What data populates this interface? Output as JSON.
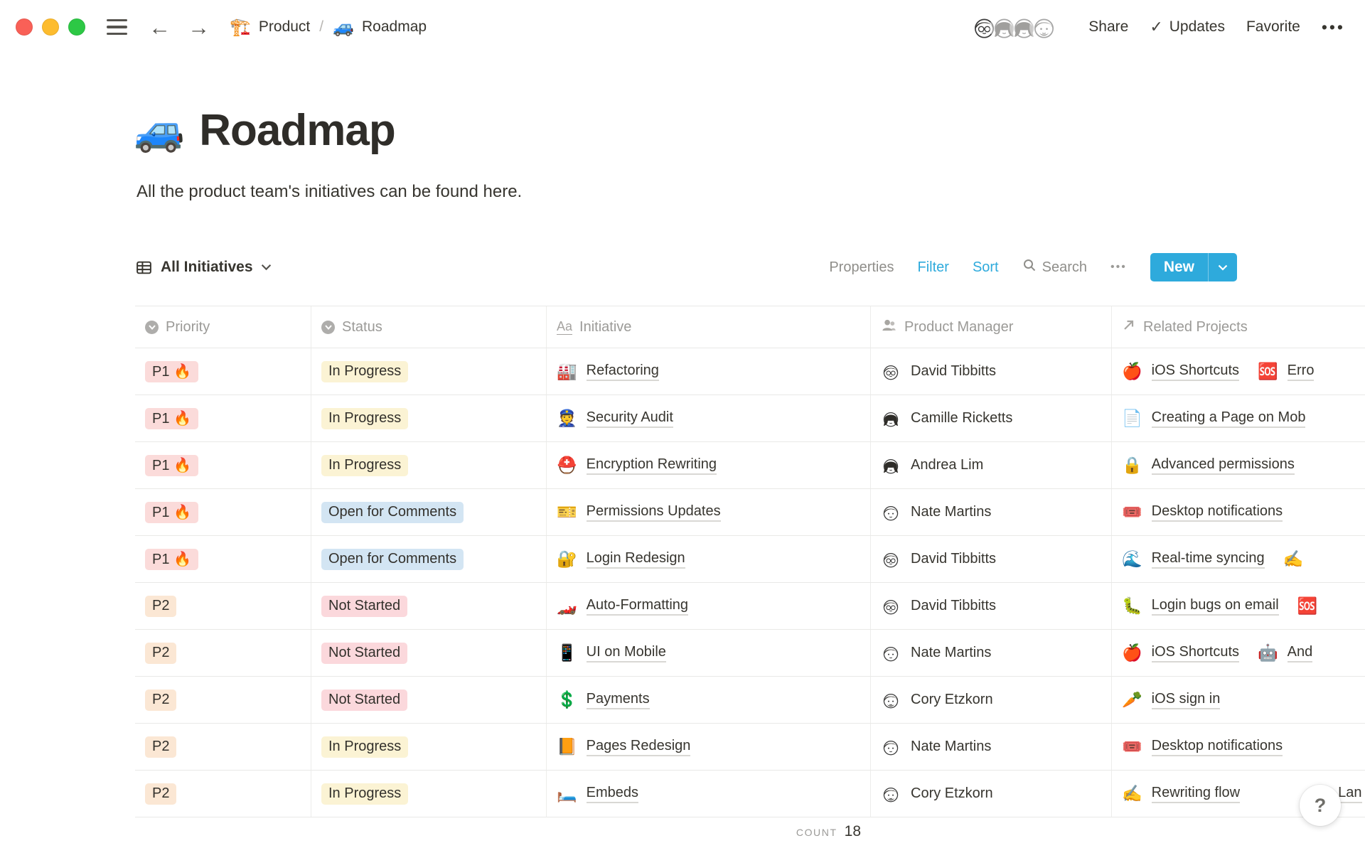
{
  "topbar": {
    "breadcrumb": [
      {
        "emoji": "🏗️",
        "label": "Product"
      },
      {
        "emoji": "🚙",
        "label": "Roadmap"
      }
    ],
    "breadcrumb_separator": "/",
    "avatars": [
      {
        "name": "David Tibbitts",
        "variant": "short-glasses"
      },
      {
        "name": "Camille Ricketts",
        "variant": "long"
      },
      {
        "name": "Andrea Lim",
        "variant": "long"
      },
      {
        "name": "Cory Etzkorn",
        "variant": "beard"
      }
    ],
    "share_label": "Share",
    "updates_check": "✓",
    "updates_label": "Updates",
    "favorite_label": "Favorite",
    "more_label": "•••"
  },
  "page": {
    "emoji": "🚙",
    "title": "Roadmap",
    "description": "All the product team's initiatives can be found here."
  },
  "toolbar": {
    "view_label": "All Initiatives",
    "properties_label": "Properties",
    "filter_label": "Filter",
    "sort_label": "Sort",
    "search_label": "Search",
    "more_label": "•••",
    "new_label": "New"
  },
  "table": {
    "columns": [
      {
        "label": "Priority",
        "icon": "select-icon"
      },
      {
        "label": "Status",
        "icon": "select-icon"
      },
      {
        "label": "Initiative",
        "icon": "title-icon",
        "icon_glyph": "Aa"
      },
      {
        "label": "Product Manager",
        "icon": "person-icon"
      },
      {
        "label": "Related Projects",
        "icon": "relation-icon"
      }
    ],
    "rows": [
      {
        "priority": {
          "label": "P1 🔥",
          "color": "red"
        },
        "status": {
          "label": "In Progress",
          "color": "yellow"
        },
        "initiative": {
          "emoji": "🏭",
          "label": "Refactoring"
        },
        "pm": {
          "name": "David Tibbitts",
          "variant": "short-glasses"
        },
        "related": [
          {
            "emoji": "🍎",
            "label": "iOS Shortcuts"
          },
          {
            "emoji": "🆘",
            "label": "Erro"
          }
        ]
      },
      {
        "priority": {
          "label": "P1 🔥",
          "color": "red"
        },
        "status": {
          "label": "In Progress",
          "color": "yellow"
        },
        "initiative": {
          "emoji": "👮",
          "label": "Security Audit"
        },
        "pm": {
          "name": "Camille Ricketts",
          "variant": "long"
        },
        "related": [
          {
            "emoji": "📄",
            "label": "Creating a Page on Mob"
          }
        ]
      },
      {
        "priority": {
          "label": "P1 🔥",
          "color": "red"
        },
        "status": {
          "label": "In Progress",
          "color": "yellow"
        },
        "initiative": {
          "emoji": "⛑️",
          "label": "Encryption Rewriting"
        },
        "pm": {
          "name": "Andrea Lim",
          "variant": "long"
        },
        "related": [
          {
            "emoji": "🔒",
            "label": "Advanced permissions"
          }
        ]
      },
      {
        "priority": {
          "label": "P1 🔥",
          "color": "red"
        },
        "status": {
          "label": "Open for Comments",
          "color": "blue"
        },
        "initiative": {
          "emoji": "🎫",
          "label": "Permissions Updates"
        },
        "pm": {
          "name": "Nate Martins",
          "variant": "short"
        },
        "related": [
          {
            "emoji": "🎟️",
            "label": "Desktop notifications"
          }
        ]
      },
      {
        "priority": {
          "label": "P1 🔥",
          "color": "red"
        },
        "status": {
          "label": "Open for Comments",
          "color": "blue"
        },
        "initiative": {
          "emoji": "🔐",
          "label": "Login Redesign"
        },
        "pm": {
          "name": "David Tibbitts",
          "variant": "short-glasses"
        },
        "related": [
          {
            "emoji": "🌊",
            "label": "Real-time syncing"
          },
          {
            "emoji": "✍️",
            "label": ""
          }
        ]
      },
      {
        "priority": {
          "label": "P2",
          "color": "orange"
        },
        "status": {
          "label": "Not Started",
          "color": "pink"
        },
        "initiative": {
          "emoji": "🏎️",
          "label": "Auto-Formatting"
        },
        "pm": {
          "name": "David Tibbitts",
          "variant": "short-glasses"
        },
        "related": [
          {
            "emoji": "🐛",
            "label": "Login bugs on email"
          },
          {
            "emoji": "🆘",
            "label": ""
          }
        ]
      },
      {
        "priority": {
          "label": "P2",
          "color": "orange"
        },
        "status": {
          "label": "Not Started",
          "color": "pink"
        },
        "initiative": {
          "emoji": "📱",
          "label": "UI on Mobile"
        },
        "pm": {
          "name": "Nate Martins",
          "variant": "short"
        },
        "related": [
          {
            "emoji": "🍎",
            "label": "iOS Shortcuts"
          },
          {
            "emoji": "🤖",
            "label": "And"
          }
        ]
      },
      {
        "priority": {
          "label": "P2",
          "color": "orange"
        },
        "status": {
          "label": "Not Started",
          "color": "pink"
        },
        "initiative": {
          "emoji": "💲",
          "label": "Payments"
        },
        "pm": {
          "name": "Cory Etzkorn",
          "variant": "beard"
        },
        "related": [
          {
            "emoji": "🥕",
            "label": "iOS sign in"
          }
        ]
      },
      {
        "priority": {
          "label": "P2",
          "color": "orange"
        },
        "status": {
          "label": "In Progress",
          "color": "yellow"
        },
        "initiative": {
          "emoji": "📙",
          "label": "Pages Redesign"
        },
        "pm": {
          "name": "Nate Martins",
          "variant": "short"
        },
        "related": [
          {
            "emoji": "🎟️",
            "label": "Desktop notifications"
          }
        ]
      },
      {
        "priority": {
          "label": "P2",
          "color": "orange"
        },
        "status": {
          "label": "In Progress",
          "color": "yellow"
        },
        "initiative": {
          "emoji": "🛏️",
          "label": "Embeds"
        },
        "pm": {
          "name": "Cory Etzkorn",
          "variant": "beard"
        },
        "related": [
          {
            "emoji": "✍️",
            "label": "Rewriting flow"
          },
          {
            "emoji": "",
            "label": "Lan"
          }
        ]
      }
    ],
    "footer": {
      "count_label": "COUNT",
      "count_value": "18"
    }
  },
  "help_button": {
    "label": "?"
  },
  "colors": {
    "accent_blue": "#2eaadc",
    "pill_red": "#fbdbda",
    "pill_orange": "#fbe7d4",
    "pill_yellow": "#fbf3d4",
    "pill_blue": "#d3e5f3",
    "pill_pink": "#fbd8dc"
  }
}
